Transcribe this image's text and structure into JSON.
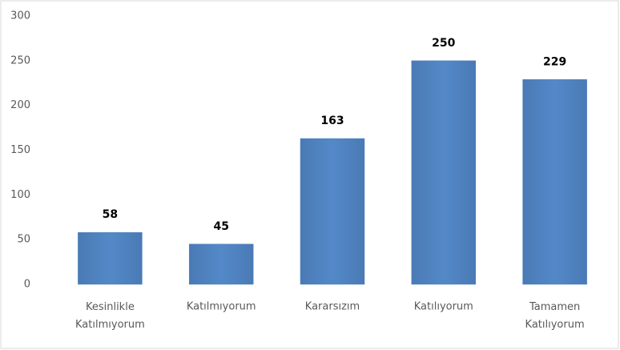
{
  "chart_data": {
    "type": "bar",
    "categories": [
      "Kesinlikle Katılmıyorum",
      "Katılmıyorum",
      "Kararsızım",
      "Katılıyorum",
      "Tamamen Katılıyorum"
    ],
    "values": [
      58,
      45,
      163,
      250,
      229
    ],
    "color": "#4f81bd",
    "ylim": [
      0,
      300
    ],
    "yticks": [
      0,
      50,
      100,
      150,
      200,
      250,
      300
    ],
    "grid": false
  }
}
